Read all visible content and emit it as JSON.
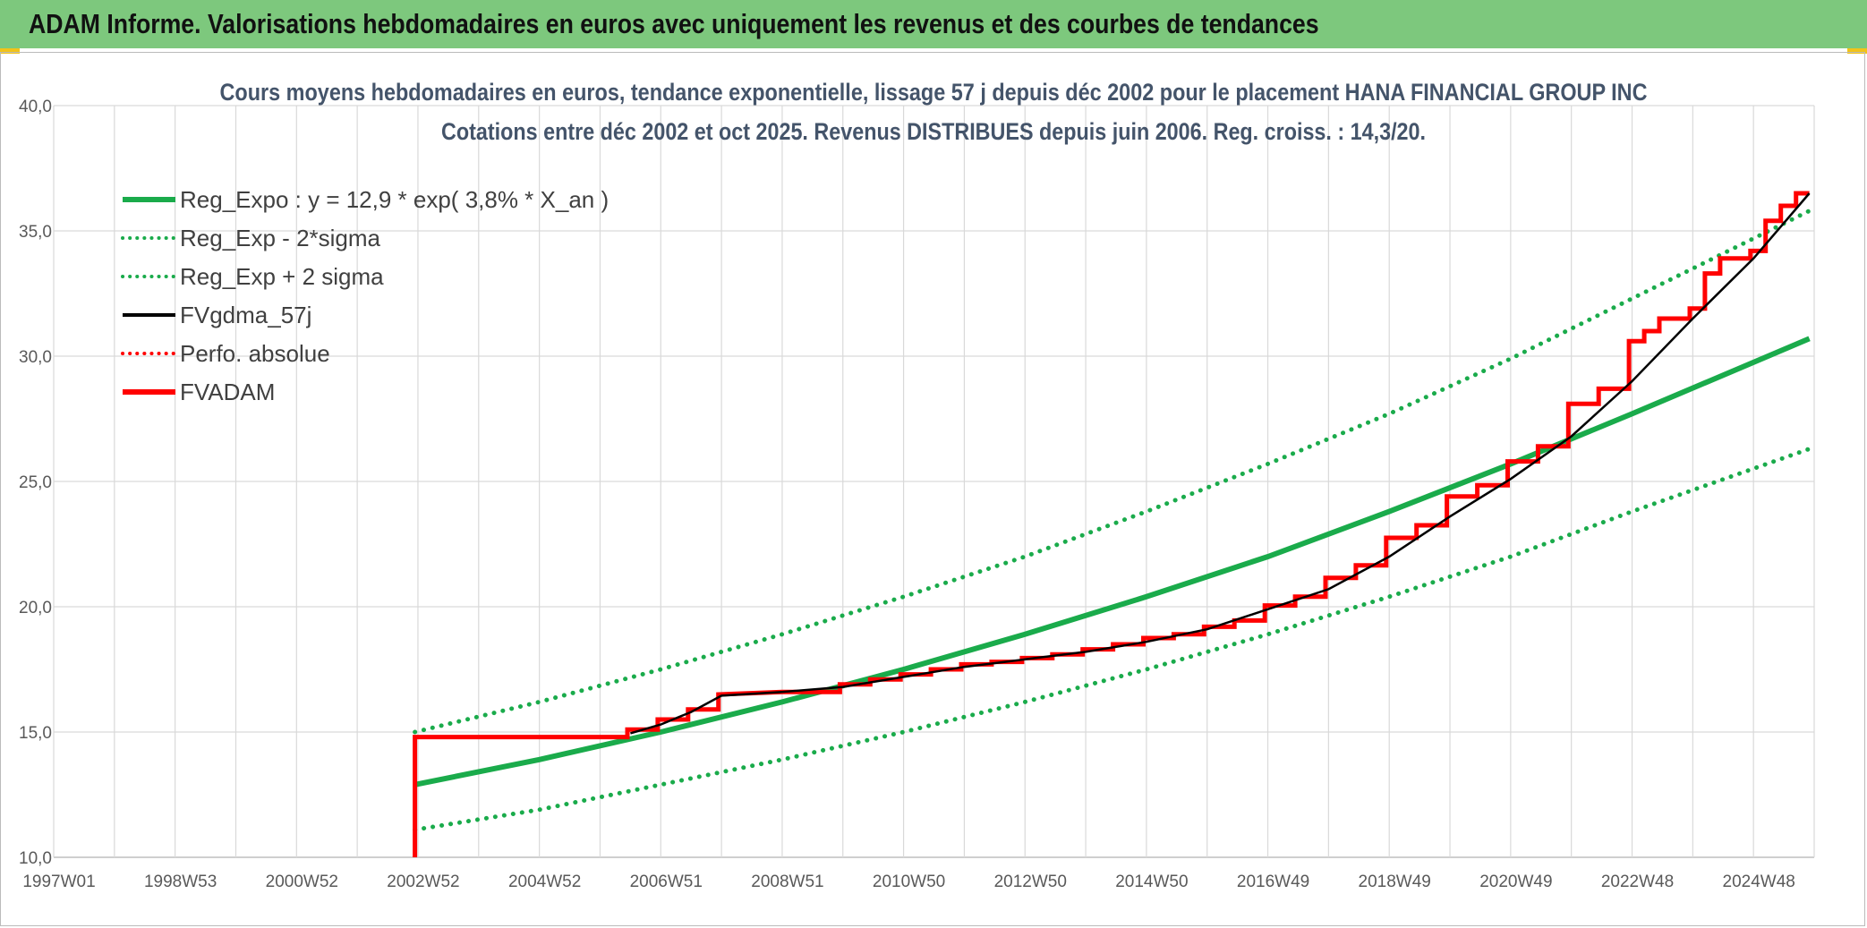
{
  "header": {
    "title": "ADAM Informe. Valorisations hebdomadaires en euros avec uniquement les revenus et des courbes de tendances"
  },
  "chart_data": {
    "type": "line",
    "title": [
      "Cours moyens hebdomadaires en euros, tendance exponentielle, lissage 57 j depuis déc 2002 pour le placement HANA FINANCIAL GROUP INC",
      "Cotations entre déc 2002 et oct 2025. Revenus DISTRIBUES depuis juin 2006. Reg. croiss. : 14,3/20."
    ],
    "xlabel": "",
    "ylabel": "",
    "x_tick_labels": [
      "1997W01",
      "1998W53",
      "2000W52",
      "2002W52",
      "2004W52",
      "2006W51",
      "2008W51",
      "2010W50",
      "2012W50",
      "2014W50",
      "2016W49",
      "2018W49",
      "2020W49",
      "2022W48",
      "2024W48"
    ],
    "xlim": [
      1997.0,
      2026.0
    ],
    "ylim": [
      10,
      40
    ],
    "y_ticks": [
      10,
      15,
      20,
      25,
      30,
      35,
      40
    ],
    "y_tick_labels": [
      "10,0",
      "15,0",
      "20,0",
      "25,0",
      "30,0",
      "35,0",
      "40,0"
    ],
    "grid": true,
    "legend_position": "top-left",
    "series": [
      {
        "name": "Reg_Expo : y = 12,9 * exp( 3,8% *  X_an )",
        "color": "#1aab4b",
        "style": "solid",
        "x": [
          2002.95,
          2005,
          2007,
          2009,
          2011,
          2013,
          2015,
          2017,
          2019,
          2021,
          2023,
          2025.92
        ],
        "y": [
          12.9,
          13.9,
          15.0,
          16.2,
          17.5,
          18.9,
          20.4,
          22.0,
          23.8,
          25.7,
          27.7,
          30.7
        ]
      },
      {
        "name": "Reg_Exp - 2*sigma",
        "color": "#1aab4b",
        "style": "dotted",
        "x": [
          2002.95,
          2005,
          2007,
          2009,
          2011,
          2013,
          2015,
          2017,
          2019,
          2021,
          2023,
          2025.92
        ],
        "y": [
          11.1,
          11.9,
          12.9,
          13.9,
          15.0,
          16.2,
          17.5,
          18.9,
          20.4,
          22.0,
          23.8,
          26.3
        ]
      },
      {
        "name": "Reg_Exp + 2 sigma",
        "color": "#1aab4b",
        "style": "dotted",
        "x": [
          2002.95,
          2005,
          2007,
          2009,
          2011,
          2013,
          2015,
          2017,
          2019,
          2021,
          2023,
          2025.92
        ],
        "y": [
          15.0,
          16.2,
          17.5,
          18.9,
          20.4,
          22.0,
          23.8,
          25.7,
          27.7,
          29.9,
          32.3,
          35.8
        ]
      },
      {
        "name": "FVgdma_57j",
        "color": "#000000",
        "style": "solid",
        "x": [
          2006.5,
          2007.0,
          2007.5,
          2008.0,
          2009.0,
          2010.0,
          2011.0,
          2012.0,
          2013.0,
          2014.0,
          2015.0,
          2016.0,
          2017.0,
          2018.0,
          2019.0,
          2020.0,
          2021.0,
          2022.0,
          2023.0,
          2024.0,
          2025.0,
          2025.92
        ],
        "y": [
          14.95,
          15.3,
          15.8,
          16.45,
          16.6,
          16.8,
          17.2,
          17.6,
          17.9,
          18.2,
          18.6,
          19.1,
          19.9,
          20.7,
          22.0,
          23.6,
          25.1,
          26.8,
          29.0,
          31.5,
          33.9,
          36.5
        ]
      },
      {
        "name": "Perfo. absolue",
        "color": "#ff0000",
        "style": "dotted",
        "x": [],
        "y": []
      },
      {
        "name": "FVADAM",
        "color": "#ff0000",
        "style": "step",
        "x": [
          2002.95,
          2002.95,
          2006.45,
          2006.45,
          2006.95,
          2006.95,
          2007.45,
          2007.45,
          2007.95,
          2007.95,
          2009.0,
          2009.95,
          2009.95,
          2010.45,
          2010.45,
          2010.95,
          2010.95,
          2011.45,
          2011.45,
          2011.95,
          2011.95,
          2012.45,
          2012.45,
          2012.95,
          2012.95,
          2013.45,
          2013.45,
          2013.95,
          2013.95,
          2014.45,
          2014.45,
          2014.95,
          2014.95,
          2015.45,
          2015.45,
          2015.95,
          2015.95,
          2016.45,
          2016.45,
          2016.95,
          2016.95,
          2017.45,
          2017.45,
          2017.95,
          2017.95,
          2018.45,
          2018.45,
          2018.95,
          2018.95,
          2019.45,
          2019.45,
          2019.95,
          2019.95,
          2020.45,
          2020.45,
          2020.95,
          2020.95,
          2021.45,
          2021.45,
          2021.95,
          2021.95,
          2022.45,
          2022.45,
          2022.95,
          2022.95,
          2023.2,
          2023.2,
          2023.45,
          2023.45,
          2023.95,
          2023.95,
          2024.2,
          2024.2,
          2024.45,
          2024.45,
          2024.95,
          2024.95,
          2025.2,
          2025.2,
          2025.45,
          2025.45,
          2025.7,
          2025.7,
          2025.92
        ],
        "y": [
          10.0,
          14.8,
          14.8,
          15.1,
          15.1,
          15.5,
          15.5,
          15.9,
          15.9,
          16.5,
          16.6,
          16.6,
          16.9,
          16.9,
          17.1,
          17.1,
          17.3,
          17.3,
          17.5,
          17.5,
          17.7,
          17.7,
          17.8,
          17.8,
          17.95,
          17.95,
          18.1,
          18.1,
          18.3,
          18.3,
          18.5,
          18.5,
          18.75,
          18.75,
          18.9,
          18.9,
          19.2,
          19.2,
          19.45,
          19.45,
          20.05,
          20.05,
          20.4,
          20.4,
          21.15,
          21.15,
          21.65,
          21.65,
          22.75,
          22.75,
          23.25,
          23.25,
          24.4,
          24.4,
          24.85,
          24.85,
          25.8,
          25.8,
          26.4,
          26.4,
          28.1,
          28.1,
          28.7,
          28.7,
          30.6,
          30.6,
          31.0,
          31.0,
          31.5,
          31.5,
          31.9,
          31.9,
          33.3,
          33.3,
          33.9,
          33.9,
          34.2,
          34.2,
          35.4,
          35.4,
          36.0,
          36.0,
          36.5,
          36.5
        ]
      }
    ]
  }
}
